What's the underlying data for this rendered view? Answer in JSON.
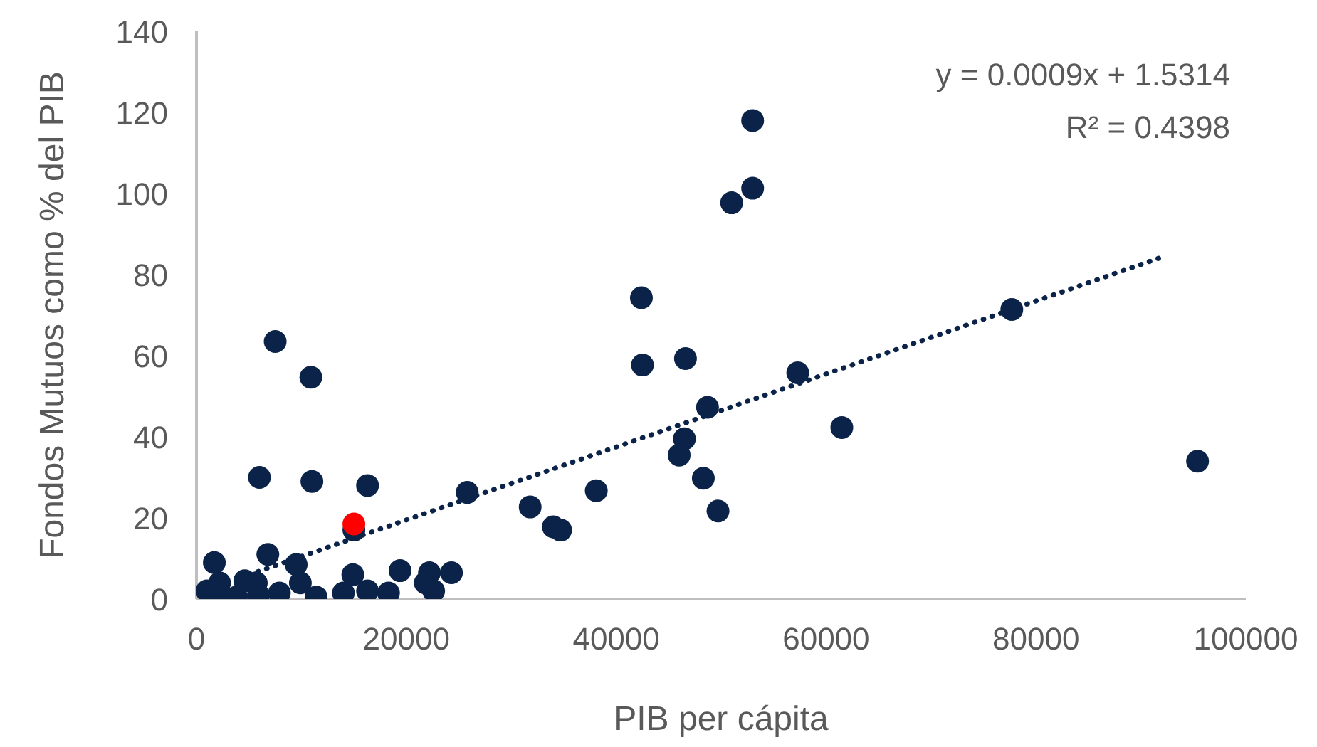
{
  "chart_data": {
    "type": "scatter",
    "xlabel": "PIB per cápita",
    "ylabel": "Fondos Mutuos como % del PIB",
    "xlim": [
      0,
      100000
    ],
    "xticks": [
      0,
      20000,
      40000,
      60000,
      80000,
      100000
    ],
    "ylim": [
      0,
      140
    ],
    "yticks": [
      0,
      20,
      40,
      60,
      80,
      100,
      120,
      140
    ],
    "legend": false,
    "marker": "circle",
    "annotations": [
      "y = 0.0009x + 1.5314",
      "R² = 0.4398"
    ],
    "series": [
      {
        "color": "#0b2348",
        "x": [
          1000,
          1700,
          2200,
          2400,
          3800,
          4600,
          5700,
          5900,
          6000,
          6800,
          7500,
          7900,
          9500,
          9900,
          10900,
          11000,
          11400,
          14000,
          14900,
          15000,
          16300,
          16300,
          18300,
          19400,
          21800,
          22200,
          22600,
          24300,
          25800,
          31800,
          34000,
          34700,
          38100,
          42400,
          42500,
          46000,
          46500,
          46600,
          48300,
          48700,
          49700,
          51000,
          53000,
          53000,
          57300,
          61500,
          77700,
          95400
        ],
        "values": [
          2,
          9,
          4,
          0.5,
          0.5,
          4.5,
          4,
          1,
          30,
          11,
          63.5,
          1.5,
          8.5,
          4,
          54.7,
          29,
          0.5,
          1.5,
          6,
          17,
          28,
          2,
          1.5,
          7,
          4,
          6.5,
          2,
          6.5,
          26.3,
          22.7,
          17.8,
          17,
          26.7,
          74.3,
          57.7,
          35.5,
          39.5,
          59.3,
          29.8,
          47.3,
          21.7,
          97.7,
          101.3,
          118,
          55.8,
          42.3,
          71.4,
          34
        ]
      },
      {
        "color": "#ff0000",
        "x": [
          15000
        ],
        "values": [
          18.5
        ]
      },
      {
        "type": "line",
        "color": "#0b2348",
        "line_style": "dotted",
        "marker": "none",
        "x": [
          5000,
          92000
        ],
        "values": [
          6,
          84.3
        ]
      }
    ]
  }
}
